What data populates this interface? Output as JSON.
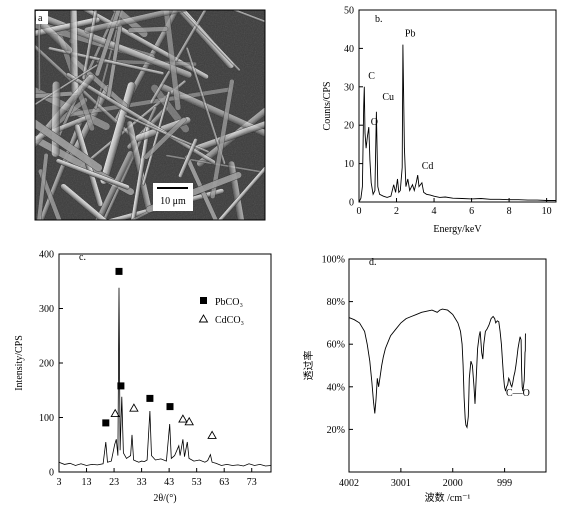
{
  "panels": {
    "a": {
      "label": "a",
      "scale_bar": "10 μm"
    },
    "b": {
      "label": "b.",
      "chart_data": {
        "type": "line",
        "xlabel": "Energy/keV",
        "ylabel": "Counts/CPS",
        "xlim": [
          0,
          10.5
        ],
        "ylim": [
          0,
          50
        ],
        "xticks": [
          0,
          2,
          4,
          6,
          8,
          10
        ],
        "yticks": [
          0,
          10,
          20,
          30,
          40,
          50
        ],
        "peaks": [
          {
            "label": "C",
            "x": 0.28,
            "y": 30
          },
          {
            "label": "O",
            "x": 0.52,
            "y": 19.5
          },
          {
            "label": "Cu",
            "x": 0.93,
            "y": 23.5
          },
          {
            "label": "Pb",
            "x": 2.34,
            "y": 41
          },
          {
            "label": "Cd",
            "x": 3.13,
            "y": 7
          }
        ],
        "curve": [
          [
            0,
            0
          ],
          [
            0.1,
            1
          ],
          [
            0.18,
            4
          ],
          [
            0.25,
            25
          ],
          [
            0.28,
            30
          ],
          [
            0.32,
            18
          ],
          [
            0.38,
            14
          ],
          [
            0.45,
            17
          ],
          [
            0.52,
            19.5
          ],
          [
            0.58,
            11
          ],
          [
            0.65,
            5
          ],
          [
            0.75,
            2
          ],
          [
            0.85,
            3
          ],
          [
            0.93,
            23.5
          ],
          [
            1.0,
            4
          ],
          [
            1.1,
            2
          ],
          [
            1.3,
            1.5
          ],
          [
            1.5,
            1.2
          ],
          [
            1.7,
            1.5
          ],
          [
            1.85,
            4.5
          ],
          [
            1.95,
            2.5
          ],
          [
            2.05,
            6
          ],
          [
            2.12,
            2.5
          ],
          [
            2.2,
            3
          ],
          [
            2.3,
            9
          ],
          [
            2.34,
            41
          ],
          [
            2.42,
            14
          ],
          [
            2.5,
            4
          ],
          [
            2.6,
            6
          ],
          [
            2.7,
            3
          ],
          [
            2.85,
            4.5
          ],
          [
            2.95,
            3
          ],
          [
            3.05,
            5
          ],
          [
            3.13,
            7
          ],
          [
            3.2,
            4
          ],
          [
            3.35,
            5
          ],
          [
            3.45,
            2.5
          ],
          [
            3.6,
            2
          ],
          [
            3.8,
            1.8
          ],
          [
            4.0,
            1.5
          ],
          [
            4.3,
            1.2
          ],
          [
            4.6,
            1.3
          ],
          [
            5.0,
            1
          ],
          [
            5.5,
            0.9
          ],
          [
            6.0,
            0.8
          ],
          [
            6.5,
            0.9
          ],
          [
            7.0,
            0.7
          ],
          [
            7.5,
            0.7
          ],
          [
            8.0,
            0.6
          ],
          [
            8.5,
            0.6
          ],
          [
            9.0,
            0.5
          ],
          [
            9.5,
            0.5
          ],
          [
            10.0,
            0.4
          ],
          [
            10.5,
            0.4
          ]
        ]
      }
    },
    "c": {
      "label": "c.",
      "chart_data": {
        "type": "line",
        "xlabel": "2θ/(°)",
        "ylabel": "Intensity/CPS",
        "xlim": [
          3,
          80
        ],
        "ylim": [
          0,
          400
        ],
        "xticks": [
          3,
          13,
          23,
          33,
          43,
          53,
          63,
          73
        ],
        "yticks": [
          0,
          100,
          200,
          300,
          400
        ],
        "legend": [
          {
            "symbol": "square",
            "name": "PbCO₃"
          },
          {
            "symbol": "triangle",
            "name": "CdCO₃"
          }
        ],
        "legend_position": "top-right",
        "pbco3_markers": [
          [
            20.0,
            90
          ],
          [
            24.8,
            368
          ],
          [
            25.5,
            158
          ],
          [
            36.0,
            135
          ],
          [
            43.3,
            120
          ]
        ],
        "cdco3_markers": [
          [
            23.4,
            108
          ],
          [
            30.2,
            118
          ],
          [
            48.0,
            98
          ],
          [
            50.3,
            93
          ],
          [
            58.6,
            68
          ]
        ],
        "curve": [
          [
            3,
            18
          ],
          [
            5,
            14
          ],
          [
            7,
            16
          ],
          [
            9,
            12
          ],
          [
            11,
            15
          ],
          [
            13,
            12
          ],
          [
            15,
            14
          ],
          [
            17,
            13
          ],
          [
            19,
            15
          ],
          [
            20,
            55
          ],
          [
            20.6,
            18
          ],
          [
            22,
            20
          ],
          [
            23.2,
            50
          ],
          [
            23.8,
            60
          ],
          [
            24.4,
            30
          ],
          [
            24.8,
            338
          ],
          [
            25.2,
            40
          ],
          [
            25.8,
            138
          ],
          [
            26.4,
            35
          ],
          [
            27.5,
            25
          ],
          [
            29,
            30
          ],
          [
            29.5,
            68
          ],
          [
            30.1,
            22
          ],
          [
            31,
            20
          ],
          [
            32,
            18
          ],
          [
            33,
            20
          ],
          [
            34,
            19
          ],
          [
            35,
            22
          ],
          [
            36.0,
            112
          ],
          [
            36.6,
            30
          ],
          [
            38,
            22
          ],
          [
            40,
            24
          ],
          [
            42,
            20
          ],
          [
            43.2,
            88
          ],
          [
            43.8,
            25
          ],
          [
            45,
            30
          ],
          [
            46.5,
            48
          ],
          [
            47,
            30
          ],
          [
            48,
            60
          ],
          [
            48.6,
            28
          ],
          [
            49.6,
            55
          ],
          [
            50.2,
            25
          ],
          [
            52,
            20
          ],
          [
            54,
            22
          ],
          [
            56,
            18
          ],
          [
            57,
            21
          ],
          [
            58,
            32
          ],
          [
            58.6,
            18
          ],
          [
            60,
            16
          ],
          [
            62,
            12
          ],
          [
            64,
            14
          ],
          [
            66,
            12
          ],
          [
            68,
            13
          ],
          [
            70,
            11
          ],
          [
            72,
            15
          ],
          [
            74,
            12
          ],
          [
            76,
            14
          ],
          [
            78,
            11
          ],
          [
            80,
            12
          ]
        ]
      }
    },
    "d": {
      "label": "d.",
      "chart_data": {
        "type": "line",
        "xlabel": "波数 /cm⁻¹",
        "ylabel": "透过率",
        "xlim": [
          4002,
          200
        ],
        "ylim": [
          0,
          100
        ],
        "xticks": [
          4002,
          3001,
          2000,
          999
        ],
        "yticks": [
          "20%",
          "40%",
          "60%",
          "80%",
          "100%"
        ],
        "annotation": "C—O",
        "curve": [
          [
            4002,
            72.5
          ],
          [
            3900,
            71.5
          ],
          [
            3800,
            70
          ],
          [
            3700,
            66
          ],
          [
            3650,
            60
          ],
          [
            3600,
            52
          ],
          [
            3560,
            42
          ],
          [
            3530,
            33
          ],
          [
            3505,
            27.5
          ],
          [
            3480,
            34
          ],
          [
            3455,
            44
          ],
          [
            3430,
            40
          ],
          [
            3400,
            45
          ],
          [
            3370,
            50
          ],
          [
            3340,
            54
          ],
          [
            3300,
            58
          ],
          [
            3250,
            61
          ],
          [
            3200,
            64
          ],
          [
            3100,
            67
          ],
          [
            3000,
            70
          ],
          [
            2900,
            72
          ],
          [
            2800,
            73
          ],
          [
            2700,
            74
          ],
          [
            2600,
            75
          ],
          [
            2500,
            75.5
          ],
          [
            2400,
            76
          ],
          [
            2300,
            75
          ],
          [
            2250,
            76
          ],
          [
            2200,
            76.5
          ],
          [
            2100,
            76
          ],
          [
            2000,
            74
          ],
          [
            1950,
            72
          ],
          [
            1900,
            70
          ],
          [
            1850,
            66
          ],
          [
            1820,
            60
          ],
          [
            1800,
            50
          ],
          [
            1780,
            35
          ],
          [
            1760,
            25
          ],
          [
            1745,
            22
          ],
          [
            1725,
            21
          ],
          [
            1700,
            26
          ],
          [
            1680,
            44
          ],
          [
            1650,
            52
          ],
          [
            1620,
            50
          ],
          [
            1590,
            40
          ],
          [
            1570,
            32
          ],
          [
            1550,
            42
          ],
          [
            1520,
            58
          ],
          [
            1490,
            64
          ],
          [
            1470,
            66
          ],
          [
            1440,
            56
          ],
          [
            1420,
            53
          ],
          [
            1400,
            60
          ],
          [
            1370,
            66
          ],
          [
            1340,
            67
          ],
          [
            1300,
            69
          ],
          [
            1260,
            72
          ],
          [
            1220,
            73
          ],
          [
            1190,
            72
          ],
          [
            1170,
            70
          ],
          [
            1140,
            71
          ],
          [
            1110,
            70.5
          ],
          [
            1085,
            66
          ],
          [
            1060,
            60
          ],
          [
            1040,
            52
          ],
          [
            1020,
            45
          ],
          [
            1000,
            40
          ],
          [
            980,
            38
          ],
          [
            960,
            40
          ],
          [
            940,
            41
          ],
          [
            920,
            44
          ],
          [
            900,
            43
          ],
          [
            880,
            41
          ],
          [
            860,
            40
          ],
          [
            840,
            42
          ],
          [
            820,
            45
          ],
          [
            800,
            47
          ],
          [
            780,
            50
          ],
          [
            760,
            54
          ],
          [
            740,
            58
          ],
          [
            720,
            61
          ],
          [
            700,
            63.5
          ],
          [
            680,
            62
          ],
          [
            670,
            48
          ],
          [
            660,
            40
          ],
          [
            645,
            38
          ],
          [
            630,
            41
          ],
          [
            620,
            43
          ],
          [
            612,
            50
          ],
          [
            605,
            56
          ],
          [
            600,
            57
          ],
          [
            597,
            64
          ],
          [
            595,
            65
          ]
        ]
      }
    }
  }
}
